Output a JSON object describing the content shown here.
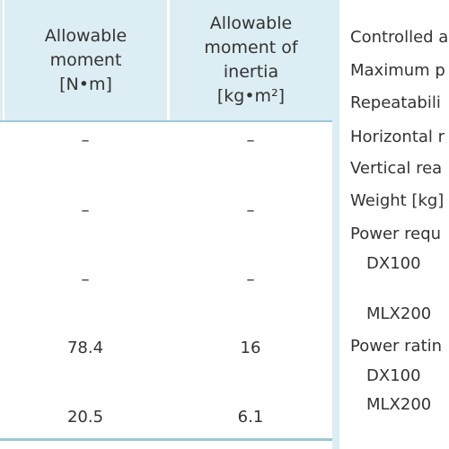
{
  "table": {
    "headers": [
      [
        "Allowable",
        "moment",
        "[N•m]"
      ],
      [
        "Allowable",
        "moment of",
        "inertia",
        "[kg•m²]"
      ]
    ],
    "rows": [
      [
        "–",
        "–"
      ],
      [
        "–",
        "–"
      ],
      [
        "–",
        "–"
      ],
      [
        "78.4",
        "16"
      ],
      [
        "20.5",
        "6.1"
      ]
    ]
  },
  "specs": [
    {
      "text": "Controlled a",
      "indent": false
    },
    {
      "text": "Maximum p",
      "indent": false
    },
    {
      "text": "Repeatabili",
      "indent": false
    },
    {
      "text": "Horizontal r",
      "indent": false
    },
    {
      "text": "Vertical rea",
      "indent": false
    },
    {
      "text": "Weight [kg]",
      "indent": false
    },
    {
      "text": "Power requ",
      "indent": false
    },
    {
      "text": "DX100",
      "indent": true
    },
    {
      "text": "MLX200",
      "indent": true
    },
    {
      "text": "Power ratin",
      "indent": false
    },
    {
      "text": "DX100",
      "indent": true
    },
    {
      "text": "MLX200",
      "indent": true
    }
  ]
}
